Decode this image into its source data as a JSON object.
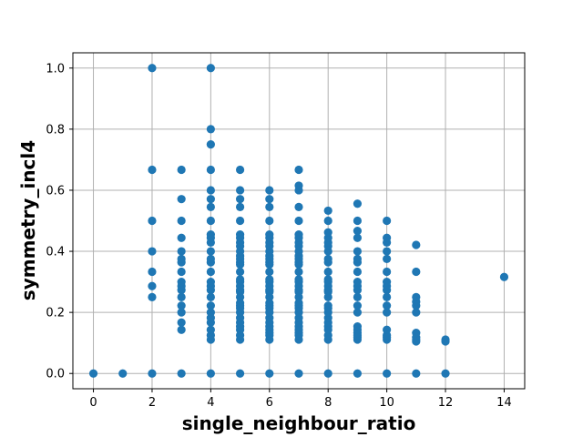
{
  "chart_data": {
    "type": "scatter",
    "title": "",
    "xlabel": "single_neighbour_ratio",
    "ylabel": "symmetry_incl4",
    "xlim": [
      -0.7,
      14.7
    ],
    "ylim": [
      -0.05,
      1.05
    ],
    "xticks": [
      0,
      2,
      4,
      6,
      8,
      10,
      12,
      14
    ],
    "yticks": [
      0.0,
      0.2,
      0.4,
      0.6,
      0.8,
      1.0
    ],
    "xtick_labels": [
      "0",
      "2",
      "4",
      "6",
      "8",
      "10",
      "12",
      "14"
    ],
    "ytick_labels": [
      "0.0",
      "0.2",
      "0.4",
      "0.6",
      "0.8",
      "1.0"
    ],
    "grid": true,
    "marker_color": "#1f77b4",
    "series": [
      {
        "points": [
          [
            0,
            0.0
          ],
          [
            1,
            0.0
          ],
          [
            2,
            0.0
          ],
          [
            2,
            0.25
          ],
          [
            2,
            0.286
          ],
          [
            2,
            0.333
          ],
          [
            2,
            0.4
          ],
          [
            2,
            0.5
          ],
          [
            2,
            0.667
          ],
          [
            2,
            1.0
          ],
          [
            3,
            0.0
          ],
          [
            3,
            0.143
          ],
          [
            3,
            0.167
          ],
          [
            3,
            0.2
          ],
          [
            3,
            0.222
          ],
          [
            3,
            0.25
          ],
          [
            3,
            0.273
          ],
          [
            3,
            0.286
          ],
          [
            3,
            0.3
          ],
          [
            3,
            0.333
          ],
          [
            3,
            0.364
          ],
          [
            3,
            0.375
          ],
          [
            3,
            0.4
          ],
          [
            3,
            0.444
          ],
          [
            3,
            0.5
          ],
          [
            3,
            0.571
          ],
          [
            3,
            0.667
          ],
          [
            4,
            0.0
          ],
          [
            4,
            0.111
          ],
          [
            4,
            0.125
          ],
          [
            4,
            0.143
          ],
          [
            4,
            0.167
          ],
          [
            4,
            0.182
          ],
          [
            4,
            0.2
          ],
          [
            4,
            0.222
          ],
          [
            4,
            0.25
          ],
          [
            4,
            0.273
          ],
          [
            4,
            0.286
          ],
          [
            4,
            0.3
          ],
          [
            4,
            0.333
          ],
          [
            4,
            0.364
          ],
          [
            4,
            0.375
          ],
          [
            4,
            0.4
          ],
          [
            4,
            0.429
          ],
          [
            4,
            0.444
          ],
          [
            4,
            0.455
          ],
          [
            4,
            0.5
          ],
          [
            4,
            0.545
          ],
          [
            4,
            0.571
          ],
          [
            4,
            0.6
          ],
          [
            4,
            0.667
          ],
          [
            4,
            0.75
          ],
          [
            4,
            0.8
          ],
          [
            4,
            1.0
          ],
          [
            5,
            0.0
          ],
          [
            5,
            0.111
          ],
          [
            5,
            0.125
          ],
          [
            5,
            0.143
          ],
          [
            5,
            0.154
          ],
          [
            5,
            0.167
          ],
          [
            5,
            0.182
          ],
          [
            5,
            0.2
          ],
          [
            5,
            0.214
          ],
          [
            5,
            0.222
          ],
          [
            5,
            0.231
          ],
          [
            5,
            0.25
          ],
          [
            5,
            0.267
          ],
          [
            5,
            0.273
          ],
          [
            5,
            0.286
          ],
          [
            5,
            0.3
          ],
          [
            5,
            0.308
          ],
          [
            5,
            0.333
          ],
          [
            5,
            0.357
          ],
          [
            5,
            0.364
          ],
          [
            5,
            0.375
          ],
          [
            5,
            0.385
          ],
          [
            5,
            0.4
          ],
          [
            5,
            0.417
          ],
          [
            5,
            0.429
          ],
          [
            5,
            0.444
          ],
          [
            5,
            0.455
          ],
          [
            5,
            0.5
          ],
          [
            5,
            0.545
          ],
          [
            5,
            0.571
          ],
          [
            5,
            0.6
          ],
          [
            5,
            0.667
          ],
          [
            6,
            0.0
          ],
          [
            6,
            0.111
          ],
          [
            6,
            0.125
          ],
          [
            6,
            0.133
          ],
          [
            6,
            0.143
          ],
          [
            6,
            0.154
          ],
          [
            6,
            0.167
          ],
          [
            6,
            0.182
          ],
          [
            6,
            0.2
          ],
          [
            6,
            0.214
          ],
          [
            6,
            0.222
          ],
          [
            6,
            0.231
          ],
          [
            6,
            0.25
          ],
          [
            6,
            0.267
          ],
          [
            6,
            0.273
          ],
          [
            6,
            0.286
          ],
          [
            6,
            0.3
          ],
          [
            6,
            0.308
          ],
          [
            6,
            0.333
          ],
          [
            6,
            0.357
          ],
          [
            6,
            0.364
          ],
          [
            6,
            0.375
          ],
          [
            6,
            0.385
          ],
          [
            6,
            0.4
          ],
          [
            6,
            0.417
          ],
          [
            6,
            0.429
          ],
          [
            6,
            0.444
          ],
          [
            6,
            0.455
          ],
          [
            6,
            0.5
          ],
          [
            6,
            0.545
          ],
          [
            6,
            0.571
          ],
          [
            6,
            0.6
          ],
          [
            7,
            0.0
          ],
          [
            7,
            0.111
          ],
          [
            7,
            0.125
          ],
          [
            7,
            0.133
          ],
          [
            7,
            0.143
          ],
          [
            7,
            0.154
          ],
          [
            7,
            0.167
          ],
          [
            7,
            0.182
          ],
          [
            7,
            0.2
          ],
          [
            7,
            0.214
          ],
          [
            7,
            0.222
          ],
          [
            7,
            0.231
          ],
          [
            7,
            0.25
          ],
          [
            7,
            0.267
          ],
          [
            7,
            0.273
          ],
          [
            7,
            0.286
          ],
          [
            7,
            0.3
          ],
          [
            7,
            0.308
          ],
          [
            7,
            0.333
          ],
          [
            7,
            0.357
          ],
          [
            7,
            0.364
          ],
          [
            7,
            0.375
          ],
          [
            7,
            0.385
          ],
          [
            7,
            0.4
          ],
          [
            7,
            0.417
          ],
          [
            7,
            0.429
          ],
          [
            7,
            0.444
          ],
          [
            7,
            0.455
          ],
          [
            7,
            0.5
          ],
          [
            7,
            0.545
          ],
          [
            7,
            0.6
          ],
          [
            7,
            0.615
          ],
          [
            7,
            0.667
          ],
          [
            8,
            0.0
          ],
          [
            8,
            0.111
          ],
          [
            8,
            0.125
          ],
          [
            8,
            0.143
          ],
          [
            8,
            0.154
          ],
          [
            8,
            0.167
          ],
          [
            8,
            0.182
          ],
          [
            8,
            0.2
          ],
          [
            8,
            0.214
          ],
          [
            8,
            0.222
          ],
          [
            8,
            0.25
          ],
          [
            8,
            0.267
          ],
          [
            8,
            0.273
          ],
          [
            8,
            0.286
          ],
          [
            8,
            0.3
          ],
          [
            8,
            0.308
          ],
          [
            8,
            0.333
          ],
          [
            8,
            0.364
          ],
          [
            8,
            0.375
          ],
          [
            8,
            0.4
          ],
          [
            8,
            0.417
          ],
          [
            8,
            0.429
          ],
          [
            8,
            0.444
          ],
          [
            8,
            0.462
          ],
          [
            8,
            0.5
          ],
          [
            8,
            0.533
          ],
          [
            9,
            0.0
          ],
          [
            9,
            0.111
          ],
          [
            9,
            0.118
          ],
          [
            9,
            0.125
          ],
          [
            9,
            0.133
          ],
          [
            9,
            0.143
          ],
          [
            9,
            0.154
          ],
          [
            9,
            0.2
          ],
          [
            9,
            0.222
          ],
          [
            9,
            0.25
          ],
          [
            9,
            0.273
          ],
          [
            9,
            0.286
          ],
          [
            9,
            0.3
          ],
          [
            9,
            0.333
          ],
          [
            9,
            0.364
          ],
          [
            9,
            0.375
          ],
          [
            9,
            0.4
          ],
          [
            9,
            0.444
          ],
          [
            9,
            0.467
          ],
          [
            9,
            0.5
          ],
          [
            9,
            0.556
          ],
          [
            10,
            0.0
          ],
          [
            10,
            0.111
          ],
          [
            10,
            0.118
          ],
          [
            10,
            0.125
          ],
          [
            10,
            0.143
          ],
          [
            10,
            0.2
          ],
          [
            10,
            0.222
          ],
          [
            10,
            0.25
          ],
          [
            10,
            0.273
          ],
          [
            10,
            0.286
          ],
          [
            10,
            0.3
          ],
          [
            10,
            0.333
          ],
          [
            10,
            0.375
          ],
          [
            10,
            0.4
          ],
          [
            10,
            0.429
          ],
          [
            10,
            0.444
          ],
          [
            10,
            0.5
          ],
          [
            11,
            0.0
          ],
          [
            11,
            0.105
          ],
          [
            11,
            0.111
          ],
          [
            11,
            0.118
          ],
          [
            11,
            0.133
          ],
          [
            11,
            0.2
          ],
          [
            11,
            0.222
          ],
          [
            11,
            0.235
          ],
          [
            11,
            0.25
          ],
          [
            11,
            0.333
          ],
          [
            11,
            0.421
          ],
          [
            12,
            0.0
          ],
          [
            12,
            0.105
          ],
          [
            12,
            0.111
          ],
          [
            14,
            0.316
          ]
        ]
      }
    ]
  }
}
